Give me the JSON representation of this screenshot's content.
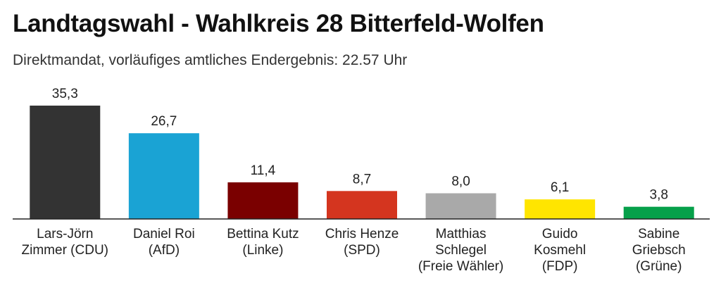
{
  "title": "Landtagswahl - Wahlkreis 28 Bitterfeld-Wolfen",
  "subtitle": "Direktmandat, vorläufiges amtliches Endergebnis: 22.57 Uhr",
  "chart_data": {
    "type": "bar",
    "categories": [
      [
        "Lars-Jörn",
        "Zimmer (CDU)"
      ],
      [
        "Daniel Roi",
        "(AfD)"
      ],
      [
        "Bettina Kutz",
        "(Linke)"
      ],
      [
        "Chris Henze",
        "(SPD)"
      ],
      [
        "Matthias",
        "Schlegel",
        "(Freie Wähler)"
      ],
      [
        "Guido",
        "Kosmehl",
        "(FDP)"
      ],
      [
        "Sabine",
        "Griebsch",
        "(Grüne)"
      ]
    ],
    "values": [
      35.3,
      26.7,
      11.4,
      8.7,
      8.0,
      6.1,
      3.8
    ],
    "value_labels": [
      "35,3",
      "26,7",
      "11,4",
      "8,7",
      "8,0",
      "6,1",
      "3,8"
    ],
    "colors": [
      "#333333",
      "#1aa3d4",
      "#7a0000",
      "#d4351f",
      "#a9a9a9",
      "#ffe500",
      "#06a04a"
    ],
    "ylim": [
      0,
      35.3
    ],
    "grid": false,
    "legend": "none"
  }
}
